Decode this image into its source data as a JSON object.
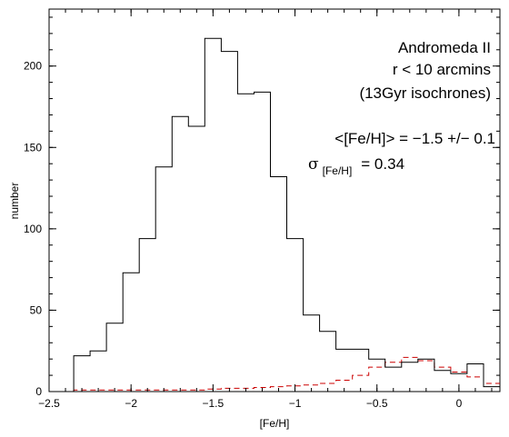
{
  "chart_data": {
    "type": "histogram",
    "xlabel": "[Fe/H]",
    "ylabel": "number",
    "xlim": [
      -2.5,
      0.25
    ],
    "ylim": [
      0,
      235
    ],
    "xticks": [
      -2.5,
      -2,
      -1.5,
      -1,
      -0.5,
      0
    ],
    "xtick_labels": [
      "−2.5",
      "−2",
      "−1.5",
      "−1",
      "−0.5",
      "0"
    ],
    "yticks": [
      0,
      50,
      100,
      150,
      200
    ],
    "ytick_labels": [
      "0",
      "50",
      "100",
      "150",
      "200"
    ],
    "bin_edges": [
      -2.35,
      -2.25,
      -2.15,
      -2.05,
      -1.95,
      -1.85,
      -1.75,
      -1.65,
      -1.55,
      -1.45,
      -1.35,
      -1.25,
      -1.15,
      -1.05,
      -0.95,
      -0.85,
      -0.75,
      -0.65,
      -0.55,
      -0.45,
      -0.35,
      -0.25,
      -0.15,
      -0.05,
      0.05,
      0.15,
      0.25
    ],
    "series": [
      {
        "style": "solid",
        "color": "#000000",
        "values": [
          22,
          25,
          42,
          73,
          94,
          138,
          169,
          163,
          217,
          209,
          183,
          184,
          132,
          94,
          47,
          37,
          26,
          26,
          20,
          15,
          18,
          20,
          13,
          11,
          17,
          3
        ]
      },
      {
        "style": "dashed",
        "color": "#cc0000",
        "values": [
          1,
          1,
          1,
          1,
          1,
          1,
          1,
          1,
          1.5,
          2,
          2,
          2.5,
          3,
          3.5,
          4,
          5,
          7,
          10,
          15,
          18,
          21,
          19,
          15,
          12,
          9,
          5
        ]
      }
    ],
    "annotations": {
      "line1": "Andromeda II",
      "line2": "r < 10 arcmins",
      "line3": "(13Gyr isochrones)",
      "line4": "<[Fe/H]> = −1.5 +/− 0.1",
      "sigma_symbol": "σ",
      "sigma_sub": "[Fe/H]",
      "sigma_value": "= 0.34"
    }
  }
}
